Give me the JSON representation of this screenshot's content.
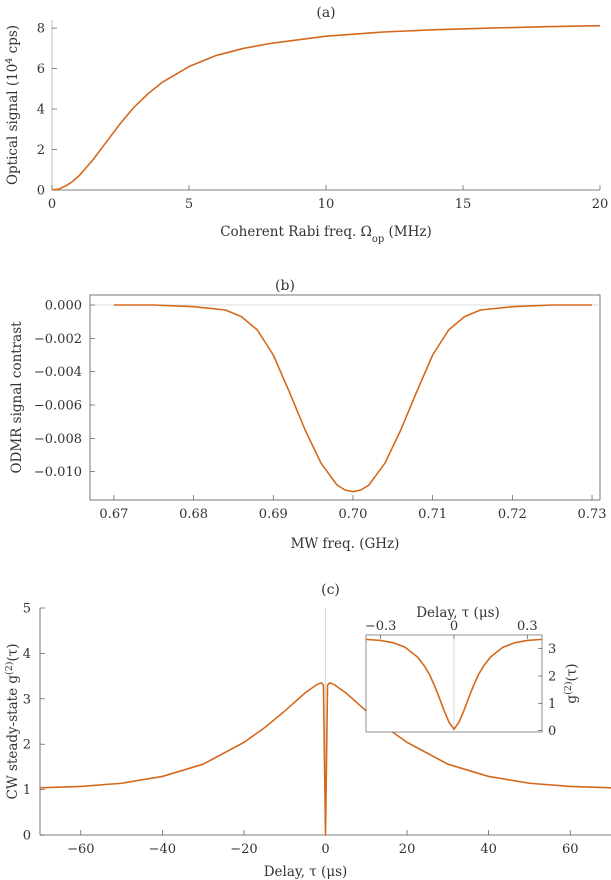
{
  "chart_data": [
    {
      "type": "line",
      "panel_label": "(a)",
      "xlabel": "Coherent Rabi freq. Ω",
      "xlabel_sub": "op",
      "xlabel_tail": " (MHz)",
      "ylabel": "Optical signal (10",
      "ylabel_sup": "4",
      "ylabel_tail": " cps)",
      "xlim": [
        0,
        20
      ],
      "ylim": [
        0,
        8.4
      ],
      "xticks": [
        "0",
        "5",
        "10",
        "15",
        "20"
      ],
      "yticks": [
        "0",
        "2",
        "4",
        "6",
        "8"
      ],
      "series": [
        {
          "x": [
            0,
            0.25,
            0.5,
            0.75,
            1,
            1.5,
            2,
            2.5,
            3,
            3.5,
            4,
            5,
            6,
            7,
            8,
            10,
            12,
            14,
            16,
            18,
            20
          ],
          "y": [
            0,
            0.05,
            0.2,
            0.42,
            0.72,
            1.5,
            2.4,
            3.3,
            4.1,
            4.75,
            5.3,
            6.1,
            6.65,
            7.0,
            7.25,
            7.6,
            7.8,
            7.92,
            8.0,
            8.07,
            8.12
          ]
        }
      ],
      "color": "#D4691E"
    },
    {
      "type": "line",
      "panel_label": "(b)",
      "xlabel": "MW freq. (GHz)",
      "ylabel": "ODMR signal contrast",
      "xlim": [
        0.667,
        0.731
      ],
      "ylim": [
        -0.0117,
        0.0006
      ],
      "xticks": [
        "0.67",
        "0.68",
        "0.69",
        "0.70",
        "0.71",
        "0.72",
        "0.73"
      ],
      "yticks": [
        "0.000",
        "-0.002",
        "-0.004",
        "-0.006",
        "-0.008",
        "-0.010"
      ],
      "series": [
        {
          "x": [
            0.67,
            0.675,
            0.68,
            0.684,
            0.686,
            0.688,
            0.69,
            0.692,
            0.694,
            0.696,
            0.698,
            0.699,
            0.7,
            0.701,
            0.702,
            0.704,
            0.706,
            0.708,
            0.71,
            0.712,
            0.714,
            0.716,
            0.72,
            0.725,
            0.73
          ],
          "y": [
            0,
            0,
            -0.0001,
            -0.0003,
            -0.0007,
            -0.0015,
            -0.003,
            -0.0052,
            -0.0075,
            -0.0095,
            -0.0108,
            -0.0111,
            -0.0112,
            -0.0111,
            -0.0108,
            -0.0095,
            -0.0075,
            -0.0052,
            -0.003,
            -0.0015,
            -0.0007,
            -0.0003,
            -0.0001,
            0,
            0
          ]
        }
      ],
      "color": "#D4691E"
    },
    {
      "type": "line",
      "panel_label": "(c)",
      "xlabel": "Delay, τ (μs)",
      "ylabel": "CW steady-state g",
      "ylabel_sup": "(2)",
      "ylabel_tail": "(τ)",
      "xlim": [
        -70,
        70
      ],
      "ylim": [
        0,
        5
      ],
      "xticks": [
        "-60",
        "-40",
        "-20",
        "0",
        "20",
        "40",
        "60"
      ],
      "yticks": [
        "0",
        "1",
        "2",
        "3",
        "4",
        "5"
      ],
      "series": [
        {
          "x": [
            -70,
            -60,
            -50,
            -40,
            -30,
            -20,
            -15,
            -10,
            -5,
            -2,
            -1,
            -0.5,
            0,
            0.5,
            1,
            2,
            5,
            10,
            15,
            20,
            30,
            40,
            50,
            60,
            70
          ],
          "y": [
            1.04,
            1.07,
            1.14,
            1.29,
            1.56,
            2.04,
            2.36,
            2.73,
            3.13,
            3.32,
            3.35,
            3.3,
            0,
            3.3,
            3.35,
            3.32,
            3.13,
            2.73,
            2.36,
            2.04,
            1.56,
            1.29,
            1.14,
            1.07,
            1.04
          ]
        }
      ],
      "color": "#D4691E",
      "inset": {
        "xlabel": "Delay, τ (μs)",
        "ylabel": "g",
        "ylabel_sup": "(2)",
        "ylabel_tail": "(τ)",
        "xlim": [
          -0.36,
          0.36
        ],
        "ylim": [
          -0.05,
          3.5
        ],
        "xticks": [
          "-0.3",
          "0",
          "0.3"
        ],
        "yticks": [
          "0",
          "1",
          "2",
          "3"
        ],
        "series": [
          {
            "x": [
              -0.36,
              -0.3,
              -0.25,
              -0.2,
              -0.15,
              -0.12,
              -0.1,
              -0.08,
              -0.06,
              -0.04,
              -0.02,
              0,
              0.02,
              0.04,
              0.06,
              0.08,
              0.1,
              0.12,
              0.15,
              0.2,
              0.25,
              0.3,
              0.36
            ],
            "y": [
              3.34,
              3.3,
              3.22,
              3.05,
              2.7,
              2.35,
              2.05,
              1.65,
              1.2,
              0.72,
              0.3,
              0.05,
              0.3,
              0.72,
              1.2,
              1.65,
              2.05,
              2.35,
              2.7,
              3.05,
              3.22,
              3.3,
              3.34
            ]
          }
        ]
      }
    }
  ]
}
